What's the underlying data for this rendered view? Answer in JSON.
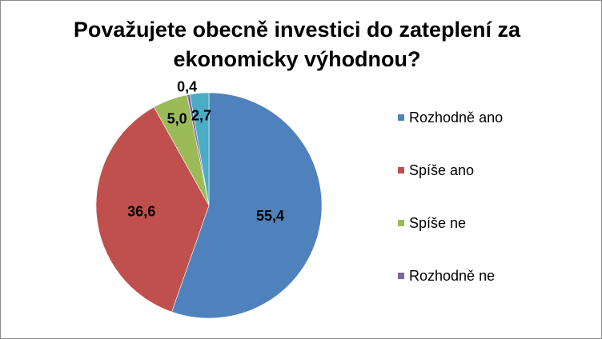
{
  "chart_data": {
    "type": "pie",
    "title_lines": [
      "Považujete obecně investici do zateplení za",
      "ekonomicky výhodnou?"
    ],
    "categories": [
      "Rozhodně ano",
      "Spíše ano",
      "Spíše ne",
      "Rozhodně ne",
      ""
    ],
    "values": [
      55.4,
      36.6,
      5.0,
      0.4,
      2.7
    ],
    "data_labels": [
      "55,4",
      "36,6",
      "5,0",
      "0,4",
      "2,7"
    ],
    "colors": [
      "#4f81bd",
      "#c0504d",
      "#9bbb59",
      "#8064a2",
      "#4bacc6"
    ],
    "legend_position": "right",
    "legend": [
      {
        "label": "Rozhodně ano",
        "color": "#4f81bd"
      },
      {
        "label": "Spíše ano",
        "color": "#c0504d"
      },
      {
        "label": "Spíše ne",
        "color": "#9bbb59"
      },
      {
        "label": "Rozhodně ne",
        "color": "#8064a2"
      }
    ]
  }
}
